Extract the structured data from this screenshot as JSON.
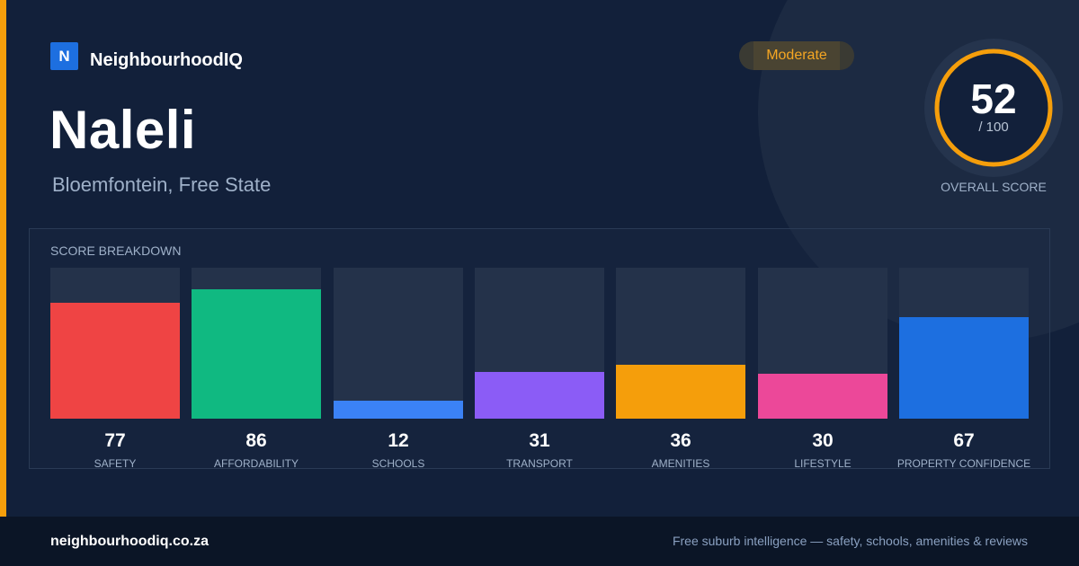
{
  "brand": {
    "logo_letter": "N",
    "name": "NeighbourhoodIQ",
    "color": "#1d6fe0"
  },
  "suburb": {
    "name": "Naleli",
    "location": "Bloemfontein, Free State"
  },
  "badge": {
    "label": "Moderate",
    "color": "#f5a623"
  },
  "overall": {
    "score": 52,
    "score_text": "52",
    "max_text": "/ 100",
    "caption": "OVERALL SCORE",
    "ring_color": "#f59e0b"
  },
  "breakdown": {
    "title": "SCORE BREAKDOWN",
    "items": [
      {
        "label": "SAFETY",
        "value": 77,
        "value_text": "77",
        "color": "#ef4444"
      },
      {
        "label": "AFFORDABILITY",
        "value": 86,
        "value_text": "86",
        "color": "#10b981"
      },
      {
        "label": "SCHOOLS",
        "value": 12,
        "value_text": "12",
        "color": "#3b82f6"
      },
      {
        "label": "TRANSPORT",
        "value": 31,
        "value_text": "31",
        "color": "#8b5cf6"
      },
      {
        "label": "AMENITIES",
        "value": 36,
        "value_text": "36",
        "color": "#f59e0b"
      },
      {
        "label": "LIFESTYLE",
        "value": 30,
        "value_text": "30",
        "color": "#ec4899"
      },
      {
        "label": "PROPERTY CONFIDENCE",
        "value": 67,
        "value_text": "67",
        "color": "#1d6fe0"
      }
    ]
  },
  "footer": {
    "domain": "neighbourhoodiq.co.za",
    "tagline": "Free suburb intelligence — safety, schools, amenities & reviews"
  },
  "colors": {
    "accent": "#f59e0b",
    "background": "#12203a"
  }
}
